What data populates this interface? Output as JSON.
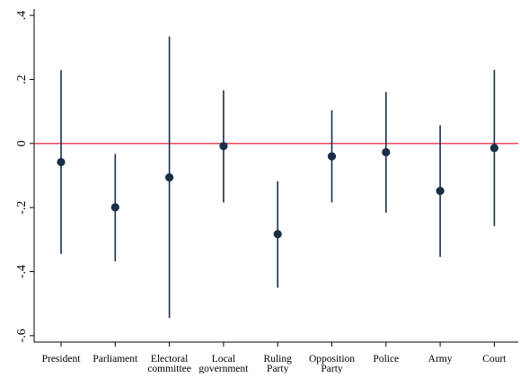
{
  "chart_data": {
    "type": "scatter",
    "subtype": "coefficient-plot-with-confidence-intervals",
    "title": "",
    "xlabel": "",
    "ylabel": "",
    "categories": [
      [
        "President"
      ],
      [
        "Parliament"
      ],
      [
        "Electoral",
        "committee"
      ],
      [
        "Local",
        "government"
      ],
      [
        "Ruling",
        "Party"
      ],
      [
        "Opposition",
        "Party"
      ],
      [
        "Police"
      ],
      [
        "Army"
      ],
      [
        "Court"
      ]
    ],
    "series": [
      {
        "estimate": [
          -0.058,
          -0.199,
          -0.106,
          -0.008,
          -0.283,
          -0.04,
          -0.027,
          -0.148,
          -0.014
        ],
        "ci_low": [
          -0.345,
          -0.368,
          -0.545,
          -0.184,
          -0.45,
          -0.184,
          -0.216,
          -0.354,
          -0.258
        ],
        "ci_high": [
          0.229,
          -0.033,
          0.334,
          0.166,
          -0.118,
          0.104,
          0.161,
          0.057,
          0.23
        ]
      }
    ],
    "yticks": [
      -0.6,
      -0.4,
      -0.2,
      0,
      0.2,
      0.4
    ],
    "ytick_labels": [
      "-.6",
      "-.4",
      "-.2",
      "0",
      ".2",
      ".4"
    ],
    "ylim": [
      -0.62,
      0.42
    ],
    "grid": false,
    "legend": "none",
    "reference_line": {
      "y": 0,
      "color": "#e8344a"
    },
    "colors": {
      "marker": "#1a2e48",
      "ci_line": "#1a2e48",
      "axis": "#000000"
    }
  }
}
